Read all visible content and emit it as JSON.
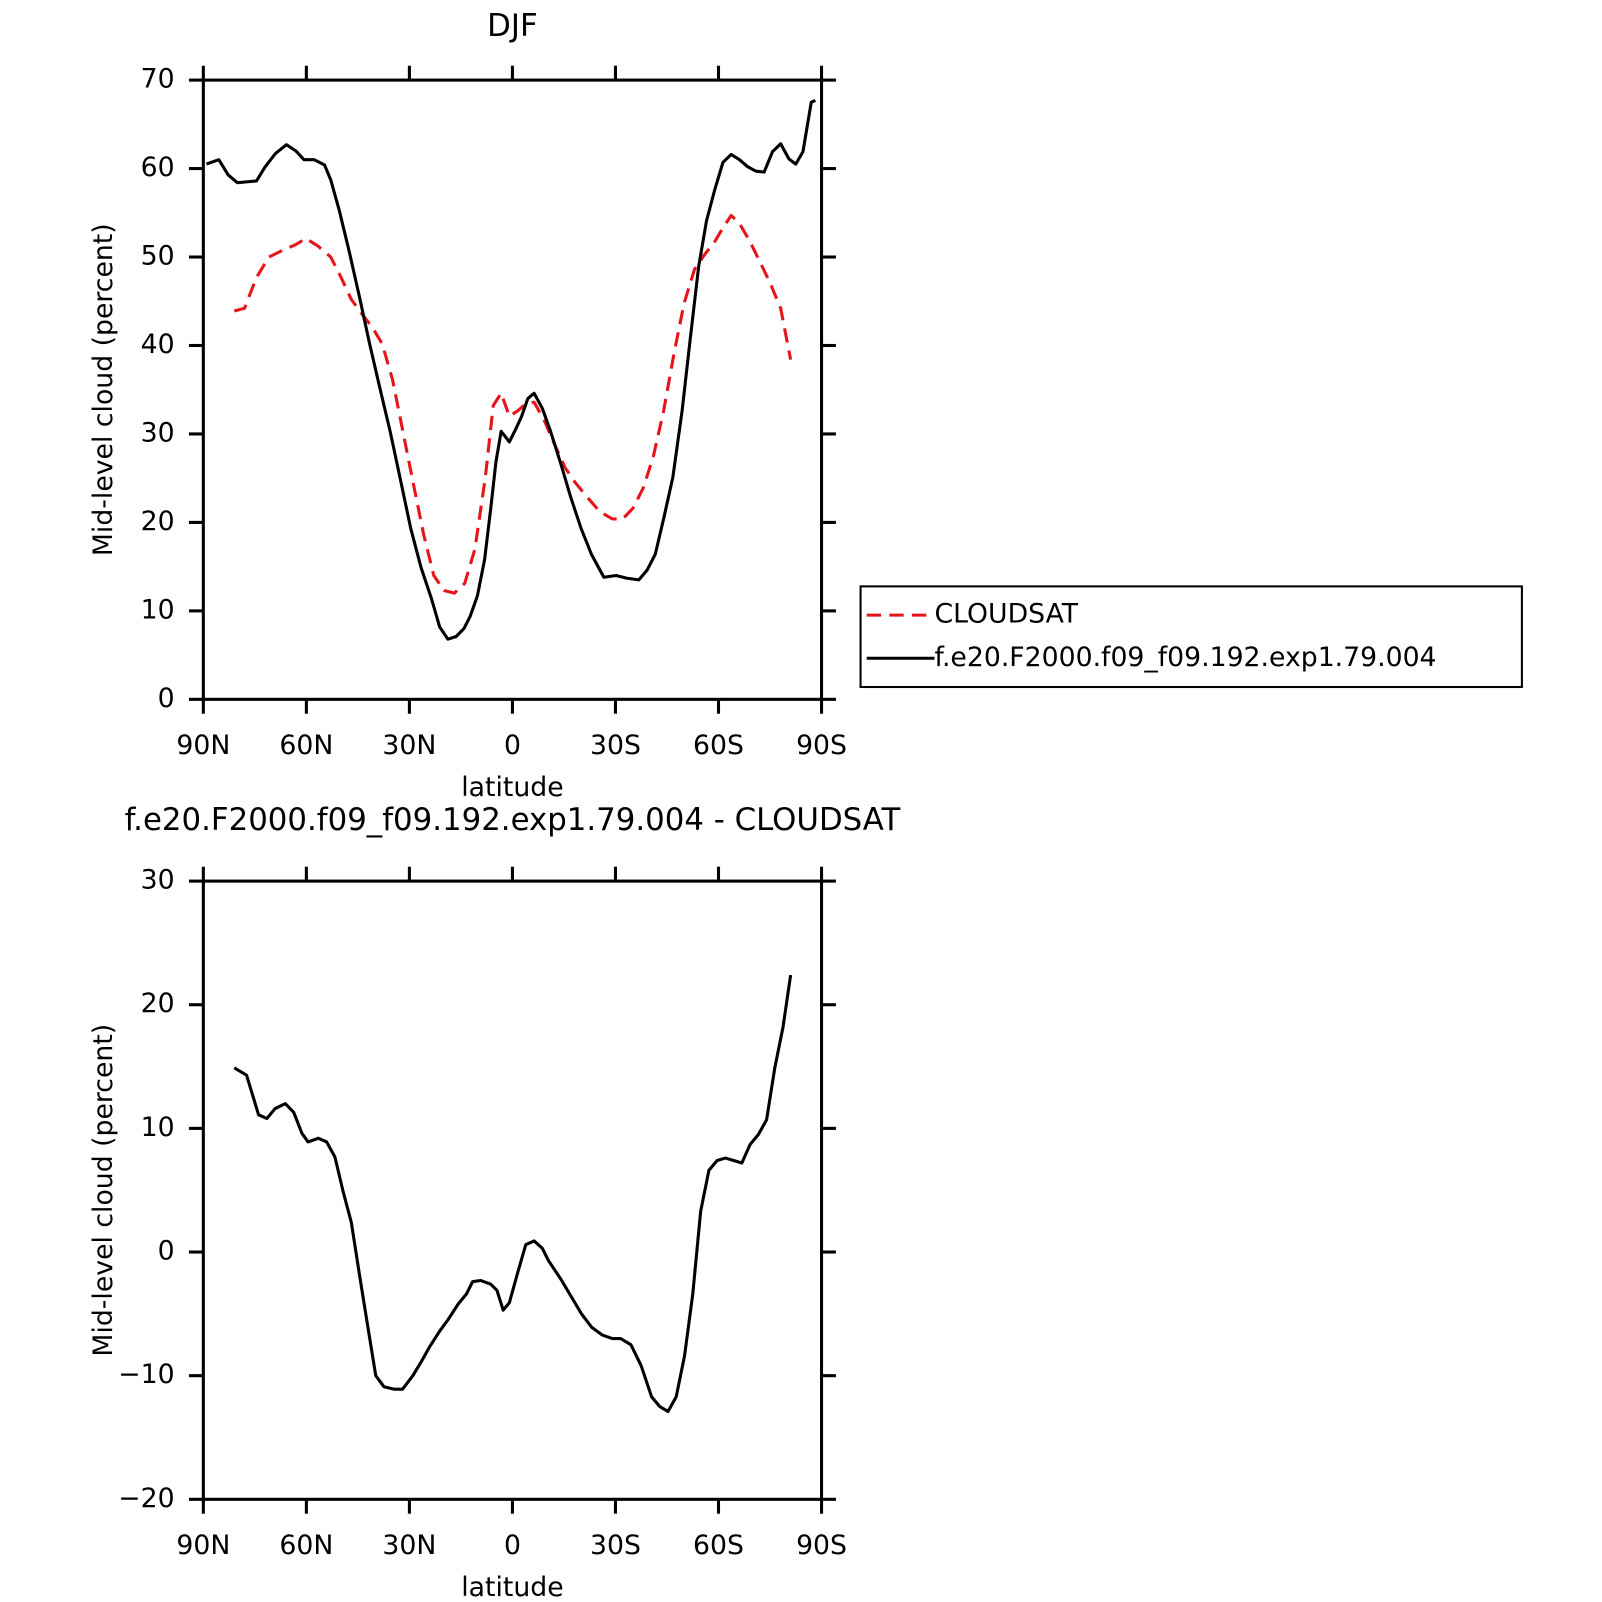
{
  "chart_data": [
    {
      "type": "line",
      "title": "DJF",
      "xlabel": "latitude",
      "ylabel": "Mid-level cloud (percent)",
      "xlim": [
        90,
        -90
      ],
      "xticks": [
        {
          "value": 90,
          "label": "90N"
        },
        {
          "value": 60,
          "label": "60N"
        },
        {
          "value": 30,
          "label": "30N"
        },
        0,
        {
          "value": -30,
          "label": "30S"
        },
        {
          "value": -60,
          "label": "60S"
        },
        {
          "value": -90,
          "label": "90S"
        }
      ],
      "ylim": [
        0,
        70
      ],
      "yticks": [
        0,
        10,
        20,
        30,
        40,
        50,
        60,
        70
      ],
      "legend": "right",
      "series": [
        {
          "name": "CLOUDSAT",
          "color": "#e8141b",
          "dash": true,
          "x": [
            81.0,
            78.0,
            74.5,
            70.9,
            66.7,
            63.1,
            60.1,
            56.5,
            52.9,
            49.9,
            46.9,
            43.9,
            40.9,
            37.9,
            34.9,
            31.9,
            28.9,
            25.9,
            22.9,
            19.9,
            16.9,
            13.9,
            10.9,
            7.9,
            5.6,
            3.3,
            0.9,
            -1.5,
            -3.9,
            -6.3,
            -9.3,
            -12.3,
            -15.3,
            -18.3,
            -21.9,
            -25.5,
            -29.1,
            -32.1,
            -35.1,
            -38.1,
            -41.0,
            -44.0,
            -47.0,
            -50.0,
            -53.0,
            -56.0,
            -59.0,
            -61.3,
            -63.7,
            -66.1,
            -69.1,
            -72.0,
            -75.0,
            -78.1,
            -81.0
          ],
          "values": [
            43.9,
            44.2,
            47.7,
            50.0,
            50.8,
            51.4,
            52.1,
            51.2,
            50.0,
            47.7,
            45.2,
            43.6,
            42.1,
            40.2,
            36.1,
            30.3,
            24.5,
            18.7,
            14.0,
            12.3,
            12.0,
            13.1,
            17.0,
            25.1,
            33.2,
            34.6,
            32.0,
            32.6,
            33.4,
            33.6,
            31.5,
            28.8,
            26.2,
            24.5,
            22.8,
            21.2,
            20.4,
            20.4,
            21.6,
            23.9,
            27.4,
            32.6,
            39.0,
            44.8,
            48.6,
            50.3,
            51.8,
            53.3,
            54.7,
            53.8,
            51.8,
            49.5,
            47.1,
            44.2,
            38.4
          ]
        },
        {
          "name": "f.e20.F2000.f09_f09.192.exp1.79.004",
          "color": "#000000",
          "dash": false,
          "x": [
            89.1,
            85.5,
            82.8,
            80.1,
            77.4,
            74.5,
            72.0,
            69.0,
            65.8,
            63.1,
            60.7,
            57.7,
            54.7,
            52.9,
            50.5,
            47.5,
            44.5,
            41.6,
            38.6,
            35.6,
            32.6,
            29.6,
            26.6,
            23.6,
            21.2,
            18.8,
            16.4,
            14.1,
            12.3,
            10.2,
            8.1,
            6.3,
            4.8,
            3.3,
            0.9,
            -0.9,
            -2.7,
            -4.5,
            -6.3,
            -8.7,
            -11.1,
            -14.1,
            -17.0,
            -20.0,
            -23.0,
            -26.6,
            -30.2,
            -33.2,
            -36.8,
            -39.2,
            -41.6,
            -44.0,
            -46.7,
            -49.4,
            -51.8,
            -54.2,
            -56.5,
            -58.9,
            -61.3,
            -63.7,
            -66.1,
            -68.5,
            -70.9,
            -73.3,
            -75.7,
            -78.1,
            -80.5,
            -82.5,
            -84.6,
            -87.0,
            -88.2
          ],
          "values": [
            60.5,
            61.0,
            59.3,
            58.4,
            58.5,
            58.6,
            60.2,
            61.7,
            62.7,
            62.0,
            61.0,
            61.0,
            60.4,
            58.7,
            55.4,
            50.6,
            45.4,
            40.2,
            35.2,
            30.3,
            24.8,
            19.3,
            14.9,
            11.4,
            8.2,
            6.8,
            7.1,
            8.0,
            9.4,
            11.7,
            15.8,
            21.6,
            26.8,
            30.3,
            29.1,
            30.5,
            32.0,
            34.0,
            34.6,
            32.9,
            30.3,
            26.6,
            22.8,
            19.3,
            16.4,
            13.8,
            14.0,
            13.7,
            13.5,
            14.6,
            16.4,
            20.4,
            25.1,
            32.6,
            40.8,
            48.9,
            54.1,
            57.6,
            60.7,
            61.6,
            61.0,
            60.2,
            59.7,
            59.6,
            61.9,
            62.8,
            61.1,
            60.5,
            61.9,
            67.5,
            67.7
          ]
        }
      ]
    },
    {
      "type": "line",
      "title": "f.e20.F2000.f09_f09.192.exp1.79.004 - CLOUDSAT",
      "xlabel": "latitude",
      "ylabel": "Mid-level cloud (percent)",
      "xlim": [
        90,
        -90
      ],
      "xticks": [
        {
          "value": 90,
          "label": "90N"
        },
        {
          "value": 60,
          "label": "60N"
        },
        {
          "value": 30,
          "label": "30N"
        },
        0,
        {
          "value": -30,
          "label": "30S"
        },
        {
          "value": -60,
          "label": "60S"
        },
        {
          "value": -90,
          "label": "90S"
        }
      ],
      "ylim": [
        -20,
        30
      ],
      "yticks": [
        {
          "value": -20,
          "label": "−20"
        },
        {
          "value": -10,
          "label": "−10"
        },
        0,
        10,
        20,
        30
      ],
      "color": "#000000",
      "x": [
        81.0,
        77.4,
        73.9,
        71.5,
        69.1,
        66.1,
        63.7,
        61.3,
        59.5,
        56.5,
        54.1,
        51.7,
        49.3,
        46.9,
        44.6,
        42.2,
        39.8,
        37.4,
        34.4,
        32.0,
        29.0,
        26.6,
        24.2,
        21.2,
        18.8,
        15.8,
        13.4,
        11.6,
        9.3,
        6.3,
        4.5,
        2.7,
        0.9,
        -1.5,
        -3.9,
        -6.3,
        -8.7,
        -10.5,
        -14.1,
        -17.1,
        -20.1,
        -23.1,
        -26.1,
        -29.1,
        -31.5,
        -34.5,
        -37.5,
        -40.5,
        -42.9,
        -45.3,
        -47.7,
        -50.1,
        -52.5,
        -54.8,
        -57.2,
        -59.6,
        -62.0,
        -64.4,
        -66.8,
        -69.2,
        -71.6,
        -74.0,
        -76.4,
        -78.8,
        -81.0
      ],
      "values": [
        14.9,
        14.3,
        11.1,
        10.8,
        11.6,
        12.0,
        11.3,
        9.6,
        8.9,
        9.2,
        8.9,
        7.7,
        4.9,
        2.4,
        -1.7,
        -5.9,
        -10.0,
        -10.9,
        -11.1,
        -11.1,
        -10.0,
        -8.9,
        -7.7,
        -6.4,
        -5.5,
        -4.2,
        -3.4,
        -2.4,
        -2.3,
        -2.6,
        -3.1,
        -4.7,
        -4.1,
        -1.7,
        0.6,
        0.9,
        0.3,
        -0.7,
        -2.2,
        -3.6,
        -5.0,
        -6.1,
        -6.7,
        -7.0,
        -7.0,
        -7.5,
        -9.2,
        -11.7,
        -12.5,
        -12.9,
        -11.7,
        -8.4,
        -3.4,
        3.3,
        6.6,
        7.4,
        7.6,
        7.4,
        7.2,
        8.7,
        9.5,
        10.7,
        14.9,
        18.2,
        22.4
      ]
    }
  ]
}
